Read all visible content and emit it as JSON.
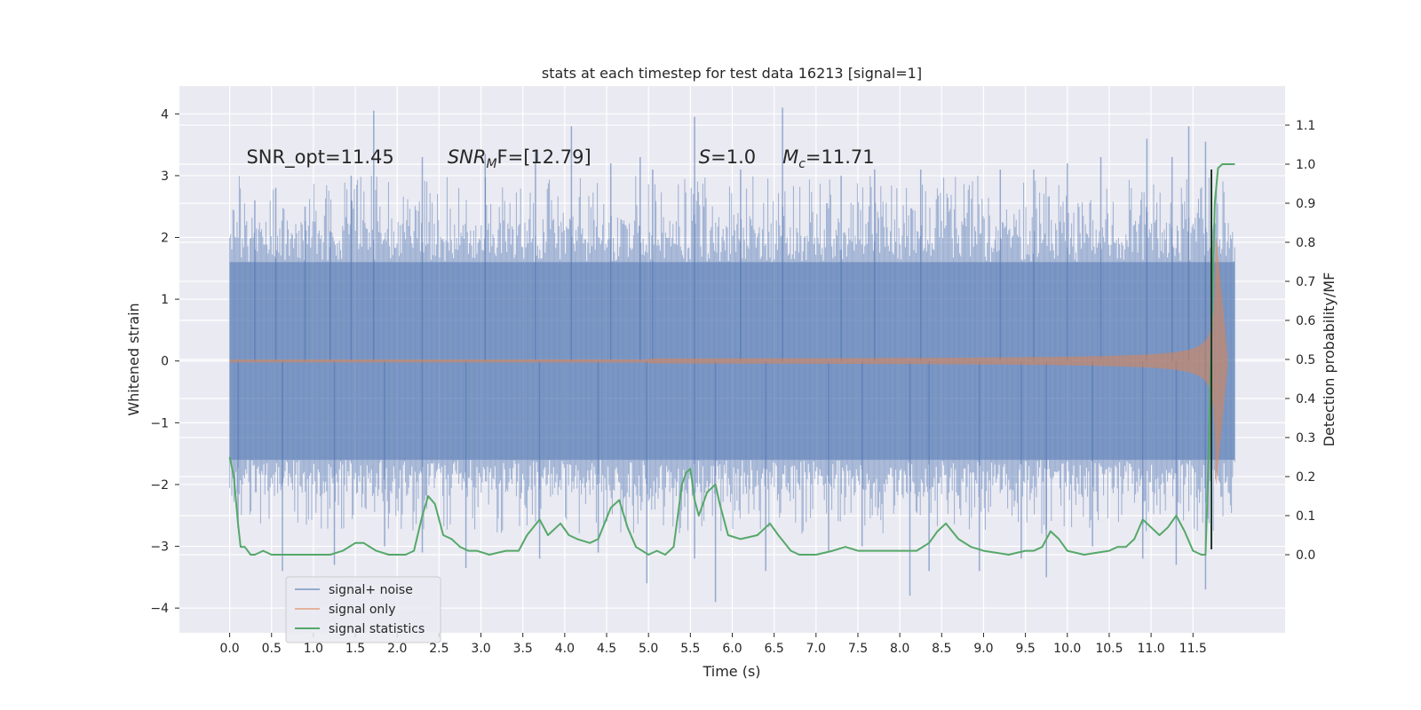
{
  "chart_data": {
    "type": "line",
    "title": "stats at each timestep for test data 16213 [signal=1]",
    "xlabel": "Time (s)",
    "ylabel_left": "Whitened strain",
    "ylabel_right": "Detection probability/MF",
    "xlim": [
      -0.6,
      12.6
    ],
    "ylim_left": [
      -4.4,
      4.45
    ],
    "ylim_right": [
      -0.2,
      1.2
    ],
    "x_ticks": [
      "0.0",
      "0.5",
      "1.0",
      "1.5",
      "2.0",
      "2.5",
      "3.0",
      "3.5",
      "4.0",
      "4.5",
      "5.0",
      "5.5",
      "6.0",
      "6.5",
      "7.0",
      "7.5",
      "8.0",
      "8.5",
      "9.0",
      "9.5",
      "10.0",
      "10.5",
      "11.0",
      "11.5"
    ],
    "x_tick_values": [
      0.0,
      0.5,
      1.0,
      1.5,
      2.0,
      2.5,
      3.0,
      3.5,
      4.0,
      4.5,
      5.0,
      5.5,
      6.0,
      6.5,
      7.0,
      7.5,
      8.0,
      8.5,
      9.0,
      9.5,
      10.0,
      10.5,
      11.0,
      11.5
    ],
    "y_ticks_left": [
      "4",
      "3",
      "2",
      "1",
      "0",
      "−1",
      "−2",
      "−3",
      "−4"
    ],
    "y_tick_values_left": [
      4,
      3,
      2,
      1,
      0,
      -1,
      -2,
      -3,
      -4
    ],
    "y_ticks_right": [
      "1.1",
      "1.0",
      "0.9",
      "0.8",
      "0.7",
      "0.6",
      "0.5",
      "0.4",
      "0.3",
      "0.2",
      "0.1",
      "0.0"
    ],
    "y_tick_values_right": [
      1.1,
      1.0,
      0.9,
      0.8,
      0.7,
      0.6,
      0.5,
      0.4,
      0.3,
      0.2,
      0.1,
      0.0
    ],
    "grid": true,
    "legend_position": "lower-left",
    "annotations": [
      {
        "prefix": "SNR_opt=11.45",
        "sub": "",
        "suffix": "",
        "italic_prefix": false
      },
      {
        "prefix": "SNR",
        "sub": "M",
        "suffix": "F=[12.79]",
        "italic_prefix": true
      },
      {
        "prefix": "S",
        "sub": "",
        "suffix": "=1.0",
        "italic_prefix": true
      },
      {
        "prefix": "M",
        "sub": "c",
        "suffix": "=11.71",
        "italic_prefix": true
      }
    ],
    "annotation_x": [
      0.2,
      2.6,
      5.6,
      6.6
    ],
    "annotation_y": 3.2,
    "series": [
      {
        "name": "signal+ noise",
        "color": "#4c72b0",
        "axis": "left",
        "x_range": [
          0.0,
          12.0
        ],
        "band_max": [
          1.6,
          3.0
        ],
        "band_min": [
          -1.6,
          -2.8
        ],
        "spikes_up": [
          [
            0.3,
            2.6
          ],
          [
            0.55,
            2.8
          ],
          [
            0.9,
            2.5
          ],
          [
            1.2,
            2.1
          ],
          [
            1.45,
            3.0
          ],
          [
            1.72,
            4.05
          ],
          [
            2.3,
            3.3
          ],
          [
            3.05,
            3.35
          ],
          [
            3.65,
            3.4
          ],
          [
            4.08,
            3.8
          ],
          [
            4.55,
            3.2
          ],
          [
            4.9,
            3.3
          ],
          [
            5.05,
            3.1
          ],
          [
            5.55,
            3.95
          ],
          [
            6.1,
            3.1
          ],
          [
            6.6,
            4.1
          ],
          [
            7.3,
            3.0
          ],
          [
            7.7,
            3.1
          ],
          [
            8.25,
            3.1
          ],
          [
            9.2,
            3.1
          ],
          [
            9.6,
            3.1
          ],
          [
            10.0,
            3.2
          ],
          [
            10.4,
            3.3
          ],
          [
            10.95,
            3.6
          ],
          [
            11.25,
            3.3
          ],
          [
            11.45,
            3.8
          ],
          [
            11.65,
            3.55
          ]
        ],
        "spikes_down": [
          [
            0.1,
            -2.7
          ],
          [
            0.63,
            -3.4
          ],
          [
            1.25,
            -3.3
          ],
          [
            1.85,
            -3.0
          ],
          [
            2.3,
            -3.1
          ],
          [
            2.82,
            -3.35
          ],
          [
            3.7,
            -3.2
          ],
          [
            4.4,
            -3.1
          ],
          [
            4.98,
            -3.6
          ],
          [
            5.55,
            -3.2
          ],
          [
            5.8,
            -3.9
          ],
          [
            6.4,
            -3.4
          ],
          [
            7.15,
            -3.1
          ],
          [
            7.55,
            -3.0
          ],
          [
            8.12,
            -3.8
          ],
          [
            8.35,
            -3.4
          ],
          [
            8.95,
            -3.4
          ],
          [
            9.45,
            -3.2
          ],
          [
            9.75,
            -3.5
          ],
          [
            10.3,
            -3.0
          ],
          [
            10.9,
            -3.2
          ],
          [
            11.3,
            -3.3
          ],
          [
            11.65,
            -3.7
          ]
        ]
      },
      {
        "name": "signal only",
        "color": "#dd8452",
        "axis": "left",
        "chirp": {
          "tc": 11.78,
          "ts": 11.92,
          "base_amp": 0.02,
          "peak_amp": 2.0
        }
      },
      {
        "name": "signal statistics",
        "color": "#55a868",
        "axis": "right",
        "x": [
          0.0,
          0.05,
          0.1,
          0.13,
          0.18,
          0.25,
          0.3,
          0.4,
          0.5,
          0.6,
          0.8,
          1.0,
          1.2,
          1.35,
          1.5,
          1.6,
          1.75,
          1.9,
          2.0,
          2.1,
          2.2,
          2.3,
          2.37,
          2.45,
          2.55,
          2.65,
          2.75,
          2.85,
          2.95,
          3.1,
          3.3,
          3.45,
          3.55,
          3.7,
          3.8,
          3.95,
          4.05,
          4.15,
          4.3,
          4.4,
          4.55,
          4.65,
          4.75,
          4.85,
          5.0,
          5.1,
          5.2,
          5.3,
          5.4,
          5.45,
          5.5,
          5.55,
          5.6,
          5.7,
          5.8,
          5.85,
          5.95,
          6.1,
          6.3,
          6.45,
          6.55,
          6.7,
          6.8,
          7.0,
          7.2,
          7.35,
          7.5,
          7.7,
          8.0,
          8.2,
          8.35,
          8.45,
          8.55,
          8.7,
          8.85,
          9.0,
          9.3,
          9.5,
          9.6,
          9.7,
          9.8,
          9.9,
          10.0,
          10.2,
          10.5,
          10.6,
          10.7,
          10.8,
          10.9,
          11.0,
          11.1,
          11.2,
          11.3,
          11.4,
          11.5,
          11.6,
          11.65,
          11.68,
          11.72,
          11.76,
          11.8,
          11.85,
          11.9,
          12.0
        ],
        "y": [
          0.25,
          0.2,
          0.08,
          0.02,
          0.02,
          0.0,
          0.0,
          0.01,
          0.0,
          0.0,
          0.0,
          0.0,
          0.0,
          0.01,
          0.03,
          0.03,
          0.01,
          0.0,
          0.0,
          0.0,
          0.01,
          0.1,
          0.15,
          0.13,
          0.05,
          0.04,
          0.02,
          0.01,
          0.01,
          0.0,
          0.01,
          0.01,
          0.05,
          0.09,
          0.05,
          0.08,
          0.05,
          0.04,
          0.03,
          0.04,
          0.12,
          0.14,
          0.07,
          0.02,
          0.0,
          0.01,
          0.0,
          0.02,
          0.18,
          0.21,
          0.22,
          0.14,
          0.1,
          0.16,
          0.18,
          0.13,
          0.05,
          0.04,
          0.05,
          0.08,
          0.05,
          0.01,
          0.0,
          0.0,
          0.01,
          0.02,
          0.01,
          0.01,
          0.01,
          0.01,
          0.03,
          0.06,
          0.08,
          0.04,
          0.02,
          0.01,
          0.0,
          0.01,
          0.01,
          0.02,
          0.06,
          0.04,
          0.01,
          0.0,
          0.01,
          0.02,
          0.02,
          0.04,
          0.09,
          0.07,
          0.05,
          0.07,
          0.1,
          0.06,
          0.01,
          0.0,
          0.0,
          0.2,
          0.55,
          0.9,
          0.99,
          1.0,
          1.0,
          1.0
        ]
      }
    ]
  }
}
